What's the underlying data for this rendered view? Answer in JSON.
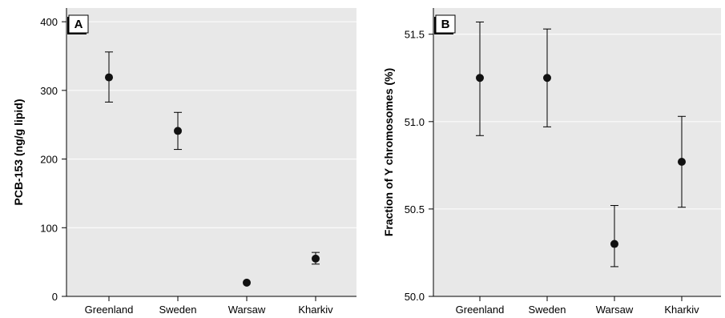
{
  "chart_data": [
    {
      "panel": "A",
      "type": "scatter",
      "ylabel": "PCB-153 (ng/g lipid)",
      "categories": [
        "Greenland",
        "Sweden",
        "Warsaw",
        "Kharkiv"
      ],
      "values": [
        319,
        241,
        20,
        55
      ],
      "lower": [
        283,
        214,
        20,
        47
      ],
      "upper": [
        356,
        268,
        20,
        64
      ],
      "ylim": [
        0,
        420
      ],
      "yticks": [
        0,
        100,
        200,
        300,
        400
      ],
      "ytick_labels": [
        "0",
        "100",
        "200",
        "300",
        "400"
      ],
      "grid": true
    },
    {
      "panel": "B",
      "type": "scatter",
      "ylabel": "Fraction of Y chromosomes (%)",
      "categories": [
        "Greenland",
        "Sweden",
        "Warsaw",
        "Kharkiv"
      ],
      "values": [
        51.25,
        51.25,
        50.3,
        50.77
      ],
      "lower": [
        50.92,
        50.97,
        50.17,
        50.51
      ],
      "upper": [
        51.57,
        51.53,
        50.52,
        51.03
      ],
      "ylim": [
        50.0,
        51.65
      ],
      "yticks": [
        50.0,
        50.5,
        51.0,
        51.5
      ],
      "ytick_labels": [
        "50.0",
        "50.5",
        "51.0",
        "51.5"
      ],
      "grid": true
    }
  ]
}
